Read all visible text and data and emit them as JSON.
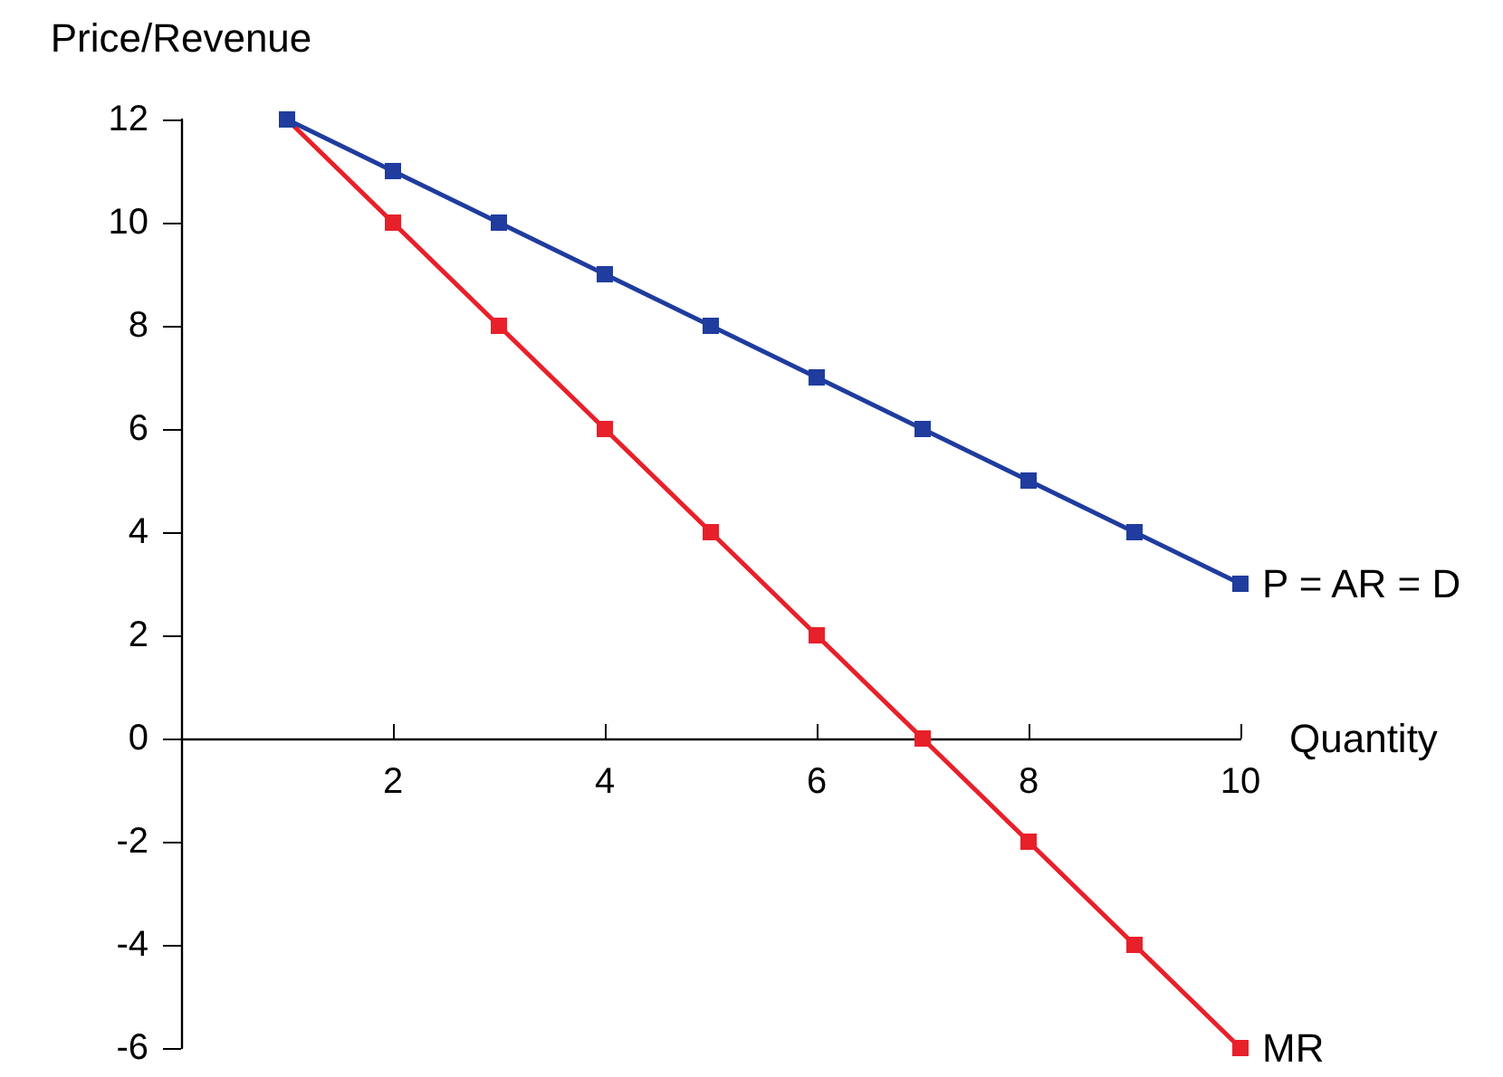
{
  "chart_data": {
    "type": "line",
    "xlabel": "Quantity",
    "ylabel": "Price/Revenue",
    "x": [
      1,
      2,
      3,
      4,
      5,
      6,
      7,
      8,
      9,
      10
    ],
    "series": [
      {
        "name": "P = AR = D",
        "color": "#1f3c9e",
        "values": [
          12,
          11,
          10,
          9,
          8,
          7,
          6,
          5,
          4,
          3
        ]
      },
      {
        "name": "MR",
        "color": "#e8202a",
        "values": [
          12,
          10,
          8,
          6,
          4,
          2,
          0,
          -2,
          -4,
          -6
        ]
      }
    ],
    "xlim": [
      0,
      10
    ],
    "xticks": [
      2,
      4,
      6,
      8,
      10
    ],
    "ylim": [
      -6,
      12
    ],
    "yticks": [
      -6,
      -4,
      -2,
      0,
      2,
      4,
      6,
      8,
      10,
      12
    ],
    "legend": false,
    "marker": "square",
    "line_style": "solid"
  }
}
